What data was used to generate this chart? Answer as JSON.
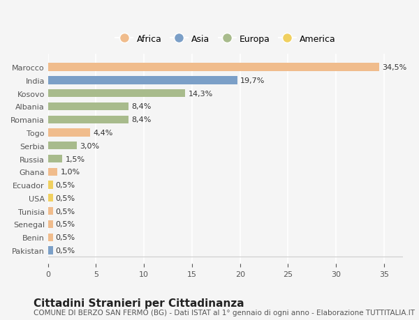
{
  "countries": [
    "Pakistan",
    "Benin",
    "Senegal",
    "Tunisia",
    "USA",
    "Ecuador",
    "Ghana",
    "Russia",
    "Serbia",
    "Togo",
    "Romania",
    "Albania",
    "Kosovo",
    "India",
    "Marocco"
  ],
  "values": [
    0.5,
    0.5,
    0.5,
    0.5,
    0.5,
    0.5,
    1.0,
    1.5,
    3.0,
    4.4,
    8.4,
    8.4,
    14.3,
    19.7,
    34.5
  ],
  "labels": [
    "0,5%",
    "0,5%",
    "0,5%",
    "0,5%",
    "0,5%",
    "0,5%",
    "1,0%",
    "1,5%",
    "3,0%",
    "4,4%",
    "8,4%",
    "8,4%",
    "14,3%",
    "19,7%",
    "34,5%"
  ],
  "continents": [
    "Asia",
    "Africa",
    "Africa",
    "Africa",
    "America",
    "America",
    "Africa",
    "Europa",
    "Europa",
    "Africa",
    "Europa",
    "Europa",
    "Europa",
    "Asia",
    "Africa"
  ],
  "continent_colors": {
    "Africa": "#F0BC8C",
    "Asia": "#7B9FC7",
    "Europa": "#A8BB8C",
    "America": "#F0D060"
  },
  "legend_order": [
    "Africa",
    "Asia",
    "Europa",
    "America"
  ],
  "legend_colors": [
    "#F0BC8C",
    "#7B9FC7",
    "#A8BB8C",
    "#F0D060"
  ],
  "xlim": [
    0,
    37
  ],
  "xticks": [
    0,
    5,
    10,
    15,
    20,
    25,
    30,
    35
  ],
  "title": "Cittadini Stranieri per Cittadinanza",
  "subtitle": "COMUNE DI BERZO SAN FERMO (BG) - Dati ISTAT al 1° gennaio di ogni anno - Elaborazione TUTTITALIA.IT",
  "background_color": "#F5F5F5",
  "bar_height": 0.6,
  "label_fontsize": 8,
  "tick_fontsize": 8,
  "title_fontsize": 11,
  "subtitle_fontsize": 7.5
}
